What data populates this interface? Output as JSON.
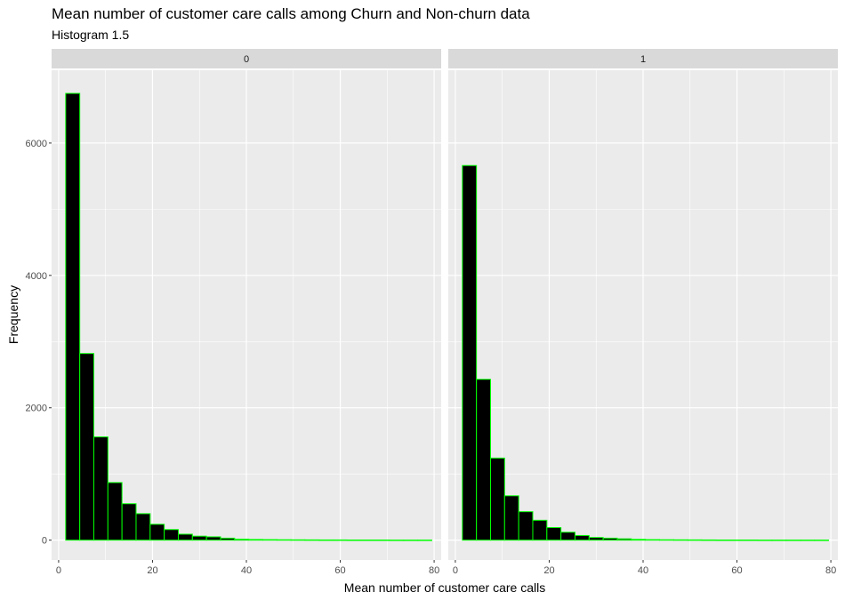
{
  "chart_data": {
    "type": "bar",
    "title": "Mean number of customer care calls among Churn and Non-churn data",
    "subtitle": "Histogram 1.5",
    "xlabel": "Mean number of customer care calls",
    "ylabel": "Frequency",
    "xlim": [
      -1.5,
      81.5
    ],
    "ylim": [
      -300,
      7100
    ],
    "x_ticks": [
      0,
      20,
      40,
      60,
      80
    ],
    "y_ticks": [
      0,
      2000,
      4000,
      6000
    ],
    "x_tick_labels": [
      "0",
      "20",
      "40",
      "60",
      "80"
    ],
    "y_tick_labels": [
      "0",
      "2000",
      "4000",
      "6000"
    ],
    "grid": true,
    "bar_fill": "#000000",
    "bar_outline": "#00ff00",
    "panel_bg": "#ebebeb",
    "strip_bg": "#d9d9d9",
    "grid_color": "#ffffff",
    "bin_width": 3,
    "bin_starts": [
      1.5,
      4.5,
      7.5,
      10.5,
      13.5,
      16.5,
      19.5,
      22.5,
      25.5,
      28.5,
      31.5,
      34.5,
      37.5,
      40.5,
      43.5,
      46.5,
      49.5,
      52.5,
      55.5,
      58.5,
      61.5,
      64.5,
      67.5,
      70.5,
      73.5,
      76.5
    ],
    "facets": [
      {
        "label": "0",
        "values": [
          6750,
          2820,
          1560,
          870,
          550,
          400,
          240,
          160,
          90,
          60,
          50,
          30,
          15,
          10,
          8,
          6,
          5,
          4,
          3,
          3,
          2,
          2,
          2,
          1,
          1,
          1
        ]
      },
      {
        "label": "1",
        "values": [
          5660,
          2430,
          1240,
          670,
          430,
          300,
          190,
          120,
          70,
          40,
          30,
          20,
          12,
          8,
          6,
          5,
          4,
          3,
          2,
          2,
          2,
          1,
          1,
          1,
          1,
          1
        ]
      }
    ]
  }
}
